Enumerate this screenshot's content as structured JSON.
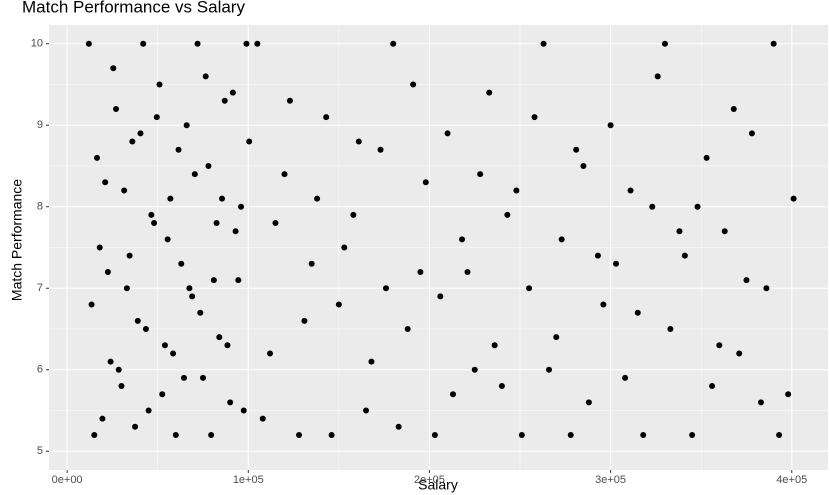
{
  "chart_data": {
    "type": "scatter",
    "title": "Match Performance vs Salary",
    "x_label": "Salary",
    "y_label": "Match Performance",
    "color": "#000000",
    "grid": true,
    "xlim": [
      -10000,
      420000
    ],
    "ylim": [
      4.77,
      10.23
    ],
    "xticks": [
      {
        "value": 0,
        "label": "0e+00"
      },
      {
        "value": 100000,
        "label": "1e+05"
      },
      {
        "value": 200000,
        "label": "2e+05"
      },
      {
        "value": 300000,
        "label": "3e+05"
      },
      {
        "value": 400000,
        "label": "4e+05"
      }
    ],
    "yticks": [
      5,
      6,
      7,
      8,
      9,
      10
    ],
    "x": [
      12000,
      15000,
      18000,
      21000,
      24000,
      27000,
      30000,
      33000,
      36000,
      39000,
      42000,
      45000,
      48000,
      51000,
      54000,
      57000,
      60000,
      63000,
      66000,
      69000,
      72000,
      75000,
      78000,
      81000,
      84000,
      87000,
      90000,
      93000,
      96000,
      99000,
      13500,
      16500,
      19500,
      22500,
      25500,
      28500,
      31500,
      34500,
      37500,
      40500,
      43500,
      46500,
      49500,
      52500,
      55500,
      58500,
      61500,
      64500,
      67500,
      70500,
      73500,
      76500,
      79500,
      82500,
      85500,
      88500,
      91500,
      94500,
      97500,
      100500,
      105000,
      112000,
      120000,
      128000,
      135000,
      143000,
      150000,
      158000,
      165000,
      173000,
      180000,
      188000,
      195000,
      203000,
      210000,
      218000,
      225000,
      233000,
      240000,
      248000,
      255000,
      263000,
      270000,
      278000,
      285000,
      293000,
      300000,
      308000,
      315000,
      323000,
      330000,
      338000,
      345000,
      353000,
      360000,
      368000,
      375000,
      383000,
      390000,
      398000,
      108000,
      115000,
      123000,
      131000,
      138000,
      146000,
      153000,
      161000,
      168000,
      176000,
      183000,
      191000,
      198000,
      206000,
      213000,
      221000,
      228000,
      236000,
      243000,
      251000,
      258000,
      266000,
      273000,
      281000,
      288000,
      296000,
      303000,
      311000,
      318000,
      326000,
      333000,
      341000,
      348000,
      356000,
      363000,
      371000,
      378000,
      386000,
      393000,
      401000
    ],
    "values": [
      10,
      5.2,
      7.5,
      8.3,
      6.1,
      9.2,
      5.8,
      7.0,
      8.8,
      6.6,
      10,
      5.5,
      7.8,
      9.5,
      6.3,
      8.1,
      5.2,
      7.3,
      9.0,
      6.9,
      10,
      5.9,
      8.5,
      7.1,
      6.4,
      9.3,
      5.6,
      7.7,
      8.0,
      10,
      6.8,
      8.6,
      5.4,
      7.2,
      9.7,
      6.0,
      8.2,
      7.4,
      5.3,
      8.9,
      6.5,
      7.9,
      9.1,
      5.7,
      7.6,
      6.2,
      8.7,
      5.9,
      7.0,
      8.4,
      6.7,
      9.6,
      5.2,
      7.8,
      8.1,
      6.3,
      9.4,
      7.1,
      5.5,
      8.8,
      10,
      6.2,
      8.4,
      5.2,
      7.3,
      9.1,
      6.8,
      7.9,
      5.5,
      8.7,
      10,
      6.5,
      7.2,
      5.2,
      8.9,
      7.6,
      6.0,
      9.4,
      5.8,
      8.2,
      7.0,
      10,
      6.4,
      5.2,
      8.5,
      7.4,
      9.0,
      5.9,
      6.7,
      8.0,
      10,
      7.7,
      5.2,
      8.6,
      6.3,
      9.2,
      7.1,
      5.6,
      10,
      5.7,
      5.4,
      7.8,
      9.3,
      6.6,
      8.1,
      5.2,
      7.5,
      8.8,
      6.1,
      7.0,
      5.3,
      9.5,
      8.3,
      6.9,
      5.7,
      7.2,
      8.4,
      6.3,
      7.9,
      5.2,
      9.1,
      6.0,
      7.6,
      8.7,
      5.6,
      6.8,
      7.3,
      8.2,
      5.2,
      9.6,
      6.5,
      7.4,
      8.0,
      5.8,
      7.7,
      6.2,
      8.9,
      7.0,
      5.2,
      8.1
    ]
  }
}
